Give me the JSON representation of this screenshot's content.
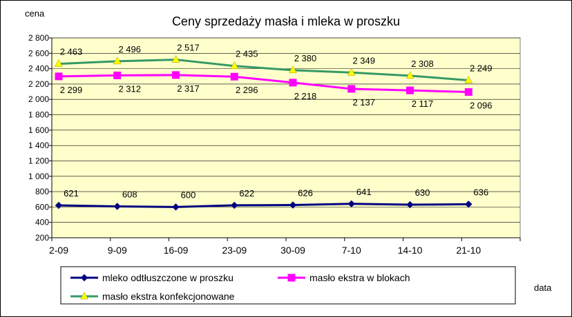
{
  "chart_data": {
    "type": "line",
    "title": "Ceny sprzedaży masła i mleka w proszku",
    "ylabel": "cena",
    "xlabel": "data",
    "categories": [
      "2-09",
      "9-09",
      "16-09",
      "23-09",
      "30-09",
      "7-10",
      "14-10",
      "21-10"
    ],
    "ylim": [
      200,
      2800
    ],
    "ytick_step": 200,
    "yticks": [
      "200",
      "400",
      "600",
      "800",
      "1 000",
      "1 200",
      "1 400",
      "1 600",
      "1 800",
      "2 000",
      "2 200",
      "2 400",
      "2 600",
      "2 800"
    ],
    "grid": "horizontal",
    "plot_background": "#FFFFCC",
    "legend_position": "bottom",
    "series": [
      {
        "name": "mleko odtłuszczone w proszku",
        "values": [
          621,
          608,
          600,
          622,
          626,
          641,
          630,
          636
        ],
        "labels": [
          "621",
          "608",
          "600",
          "622",
          "626",
          "641",
          "630",
          "636"
        ],
        "color": "#000080",
        "marker": "diamond",
        "label_position": "above"
      },
      {
        "name": "masło ekstra w blokach",
        "values": [
          2299,
          2312,
          2317,
          2296,
          2218,
          2137,
          2117,
          2096
        ],
        "labels": [
          "2 299",
          "2 312",
          "2 317",
          "2 296",
          "2 218",
          "2 137",
          "2 117",
          "2 096"
        ],
        "color": "#FF00FF",
        "marker": "square",
        "label_position": "below"
      },
      {
        "name": "masło ekstra konfekcjonowane",
        "values": [
          2463,
          2496,
          2517,
          2435,
          2380,
          2349,
          2308,
          2249
        ],
        "labels": [
          "2 463",
          "2 496",
          "2 517",
          "2 435",
          "2 380",
          "2 349",
          "2 308",
          "2 249"
        ],
        "color": "#339966",
        "marker_color": "#FFFF00",
        "marker": "triangle",
        "label_position": "above"
      }
    ]
  }
}
